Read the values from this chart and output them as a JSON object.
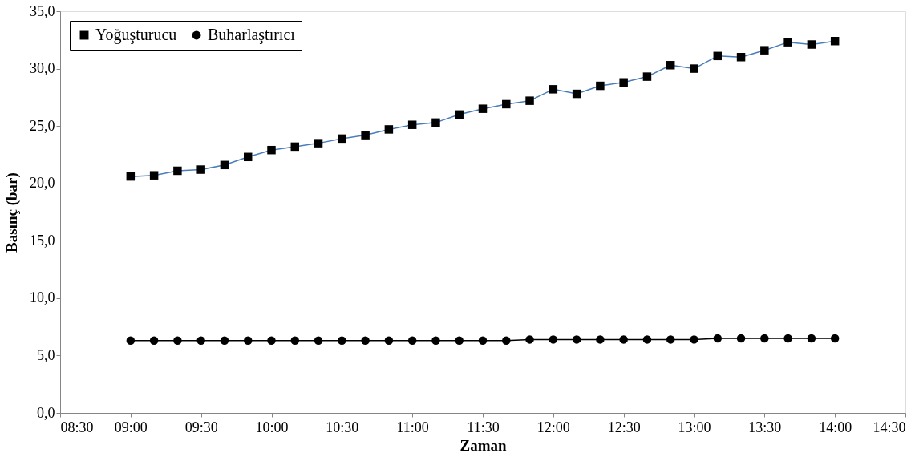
{
  "chart_data": {
    "type": "line",
    "xlabel": "Zaman",
    "ylabel": "Basınç (bar)",
    "x": [
      9.0,
      9.1667,
      9.3333,
      9.5,
      9.6667,
      9.8333,
      10.0,
      10.1667,
      10.3333,
      10.5,
      10.6667,
      10.8333,
      11.0,
      11.1667,
      11.3333,
      11.5,
      11.6667,
      11.8333,
      12.0,
      12.1667,
      12.3333,
      12.5,
      12.6667,
      12.8333,
      13.0,
      13.1667,
      13.3333,
      13.5,
      13.6667,
      13.8333,
      14.0
    ],
    "series": [
      {
        "name": "Yoğuşturucu",
        "color": "#4a7ebb",
        "marker": "square",
        "values": [
          20.6,
          20.7,
          21.1,
          21.2,
          21.6,
          22.3,
          22.9,
          23.2,
          23.5,
          23.9,
          24.2,
          24.7,
          25.1,
          25.3,
          26.0,
          26.5,
          26.9,
          27.2,
          28.2,
          27.8,
          28.5,
          28.8,
          29.3,
          30.3,
          30.0,
          31.1,
          31.0,
          31.6,
          32.3,
          32.1,
          32.4
        ]
      },
      {
        "name": "Buharlaştırıcı",
        "color": "#000000",
        "marker": "circle",
        "values": [
          6.3,
          6.3,
          6.3,
          6.3,
          6.3,
          6.3,
          6.3,
          6.3,
          6.3,
          6.3,
          6.3,
          6.3,
          6.3,
          6.3,
          6.3,
          6.3,
          6.3,
          6.4,
          6.4,
          6.4,
          6.4,
          6.4,
          6.4,
          6.4,
          6.4,
          6.5,
          6.5,
          6.5,
          6.5,
          6.5,
          6.5
        ]
      }
    ],
    "xlim": [
      8.5,
      14.5
    ],
    "xticks": [
      {
        "value": 8.5,
        "label": "08:30"
      },
      {
        "value": 9,
        "label": "09:00"
      },
      {
        "value": 9.5,
        "label": "09:30"
      },
      {
        "value": 10,
        "label": "10:00"
      },
      {
        "value": 10.5,
        "label": "10:30"
      },
      {
        "value": 11,
        "label": "11:00"
      },
      {
        "value": 11.5,
        "label": "11:30"
      },
      {
        "value": 12,
        "label": "12:00"
      },
      {
        "value": 12.5,
        "label": "12:30"
      },
      {
        "value": 13,
        "label": "13:00"
      },
      {
        "value": 13.5,
        "label": "13:30"
      },
      {
        "value": 14,
        "label": "14:00"
      },
      {
        "value": 14.5,
        "label": "14:30"
      }
    ],
    "ylim": [
      0,
      35
    ],
    "yticks": [
      {
        "value": 0,
        "label": "0,0"
      },
      {
        "value": 5,
        "label": "5,0"
      },
      {
        "value": 10,
        "label": "10,0"
      },
      {
        "value": 15,
        "label": "15,0"
      },
      {
        "value": 20,
        "label": "20,0"
      },
      {
        "value": 25,
        "label": "25,0"
      },
      {
        "value": 30,
        "label": "30,0"
      },
      {
        "value": 35,
        "label": "35,0"
      }
    ],
    "grid": false,
    "legend": "top left",
    "line_style": "solid"
  }
}
